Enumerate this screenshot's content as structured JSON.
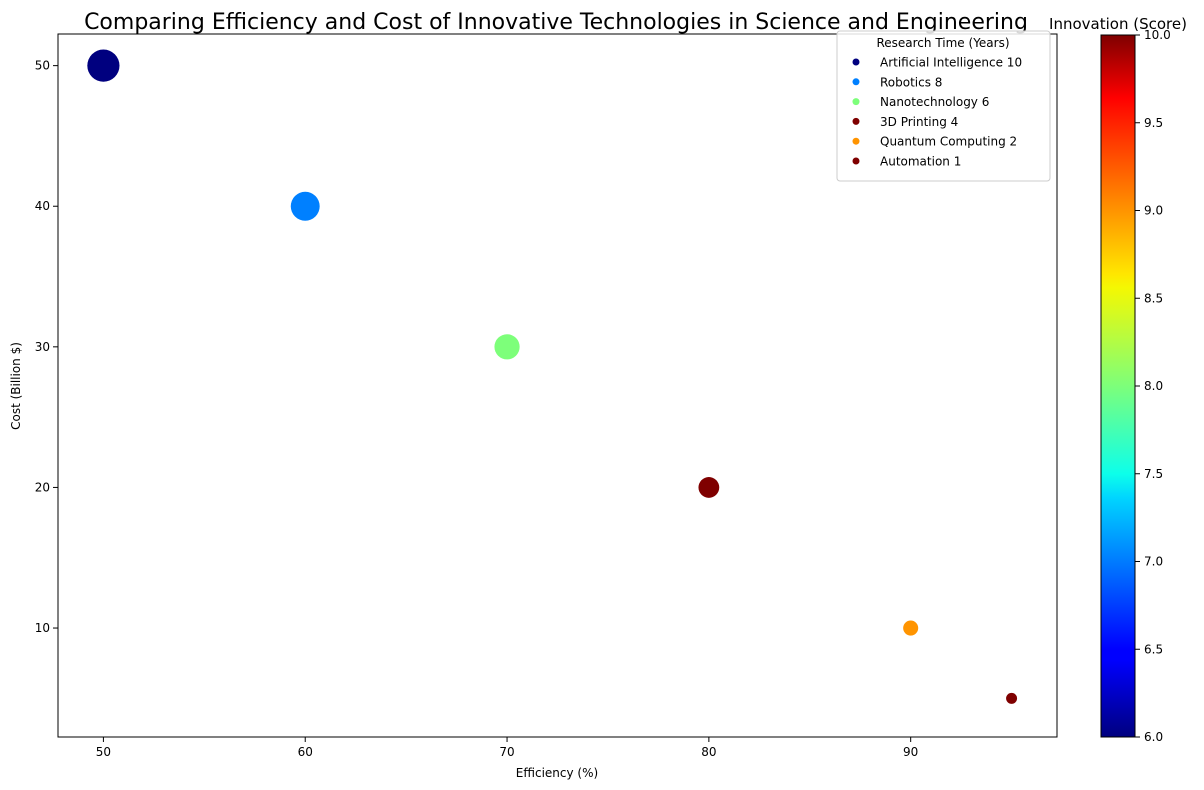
{
  "chart_data": {
    "type": "scatter",
    "title": "Comparing Efficiency and Cost of Innovative Technologies in Science and Engineering",
    "xlabel": "Efficiency (%)",
    "ylabel": "Cost (Billion $)",
    "xlim": [
      47.75,
      97.25
    ],
    "ylim": [
      2.25,
      52.25
    ],
    "xticks": [
      50,
      60,
      70,
      80,
      90
    ],
    "yticks": [
      10,
      20,
      30,
      40,
      50
    ],
    "grid": false,
    "legend": {
      "title": "Research Time (Years)",
      "placement": "top-right"
    },
    "colorbar": {
      "label": "Innovation (Score)",
      "colormap": "jet",
      "range": [
        6.0,
        10.0
      ],
      "ticks": [
        "6.0",
        "6.5",
        "7.0",
        "7.5",
        "8.0",
        "8.5",
        "9.0",
        "9.5",
        "10.0"
      ]
    },
    "points": [
      {
        "label": "Artificial Intelligence 10",
        "x": 50,
        "y": 50,
        "research_time": 10,
        "innovation": 6.0,
        "color": "#00007f"
      },
      {
        "label": "Robotics 8",
        "x": 60,
        "y": 40,
        "research_time": 8,
        "innovation": 7.0,
        "color": "#0080ff"
      },
      {
        "label": "Nanotechnology 6",
        "x": 70,
        "y": 30,
        "research_time": 6,
        "innovation": 8.0,
        "color": "#7dff7a"
      },
      {
        "label": "3D Printing 4",
        "x": 80,
        "y": 20,
        "research_time": 4,
        "innovation": 10.0,
        "color": "#7f0000"
      },
      {
        "label": "Quantum Computing 2",
        "x": 90,
        "y": 10,
        "research_time": 2,
        "innovation": 9.0,
        "color": "#ff9400"
      },
      {
        "label": "Automation 1",
        "x": 95,
        "y": 5,
        "research_time": 1,
        "innovation": 10.0,
        "color": "#7f0000"
      }
    ]
  }
}
